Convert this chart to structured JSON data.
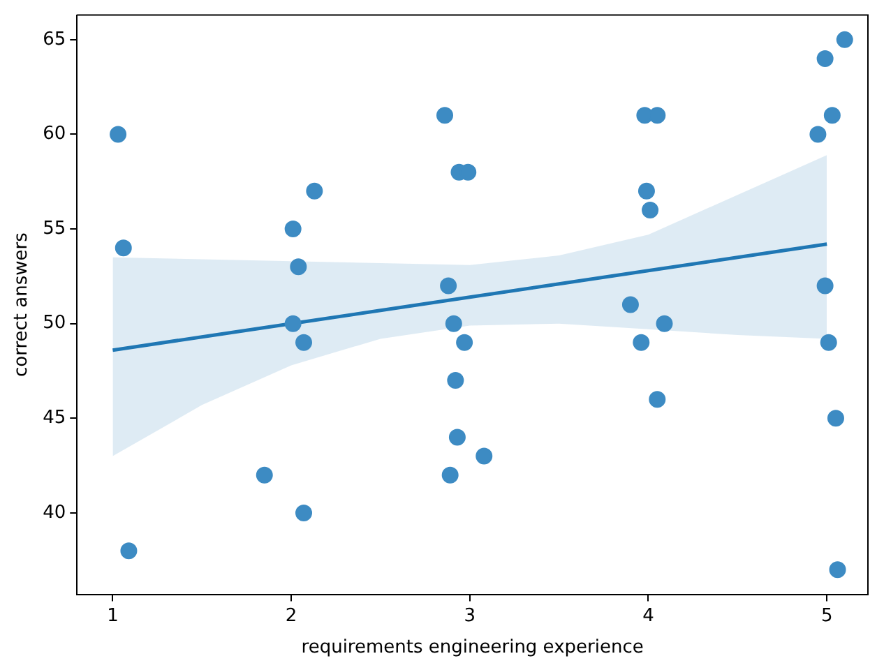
{
  "chart_data": {
    "type": "scatter",
    "xlabel": "requirements engineering experience",
    "ylabel": "correct answers",
    "xlim": [
      0.8,
      5.23
    ],
    "ylim": [
      35.7,
      66.3
    ],
    "xticks": [
      1,
      2,
      3,
      4,
      5
    ],
    "yticks": [
      40,
      45,
      50,
      55,
      60,
      65
    ],
    "grid": false,
    "legend": false,
    "marker": "circle",
    "series": [
      {
        "color": "#3d8bc3",
        "x": [
          1.03,
          1.06,
          1.09,
          1.85,
          2.01,
          2.04,
          2.13,
          2.01,
          2.07,
          2.07,
          2.86,
          2.94,
          2.99,
          2.88,
          2.91,
          2.97,
          2.92,
          2.93,
          3.08,
          2.89,
          3.98,
          4.05,
          3.99,
          4.01,
          3.9,
          4.09,
          3.96,
          4.05,
          5.1,
          4.99,
          5.03,
          4.95,
          4.99,
          5.01,
          5.05,
          5.06
        ],
        "values": [
          60,
          54,
          38,
          42,
          55,
          53,
          57,
          50,
          49,
          40,
          61,
          58,
          58,
          52,
          50,
          49,
          47,
          44,
          43,
          42,
          61,
          61,
          57,
          56,
          51,
          50,
          49,
          46,
          65,
          64,
          61,
          60,
          52,
          49,
          45,
          37
        ]
      },
      {
        "type": "line",
        "color": "#1f77b4",
        "marker": "none",
        "x": [
          1,
          1.5,
          2,
          2.5,
          3,
          3.5,
          4,
          4.5,
          5
        ],
        "values": [
          48.6,
          49.3,
          50.0,
          50.7,
          51.4,
          52.1,
          52.8,
          53.5,
          54.2
        ],
        "lower": [
          43.0,
          45.7,
          47.8,
          49.2,
          49.9,
          50.0,
          49.7,
          49.4,
          49.2
        ],
        "upper": [
          53.5,
          53.4,
          53.3,
          53.2,
          53.1,
          53.6,
          54.7,
          56.8,
          58.9
        ]
      }
    ]
  }
}
